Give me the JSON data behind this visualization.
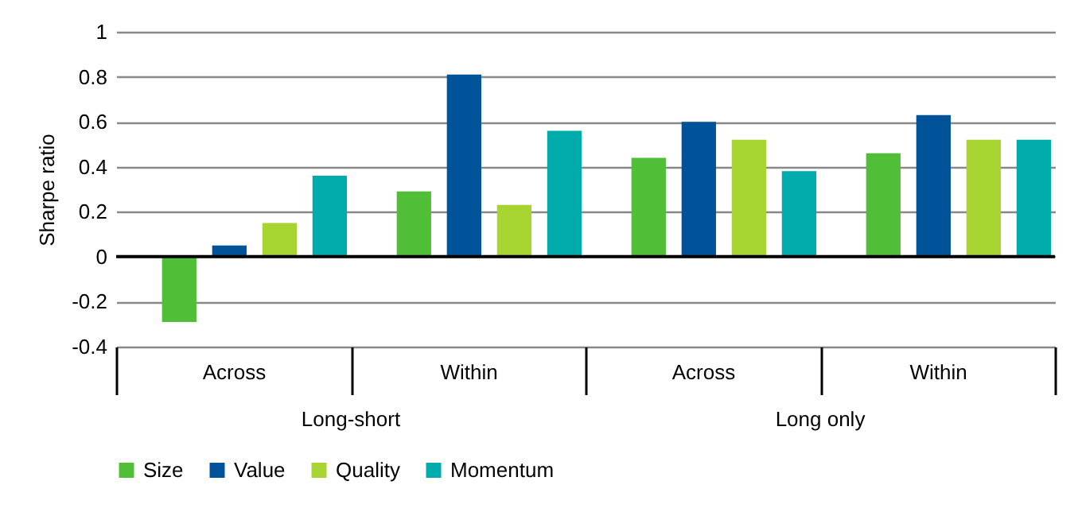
{
  "chart_data": {
    "type": "bar",
    "ylabel": "Sharpe ratio",
    "categories": [
      "Across",
      "Within",
      "Across",
      "Within"
    ],
    "annotations": [
      "Long-short",
      "Long only"
    ],
    "series": [
      {
        "name": "Size",
        "color": "#50be37",
        "values": [
          -0.29,
          0.29,
          0.44,
          0.46
        ]
      },
      {
        "name": "Value",
        "color": "#005398",
        "values": [
          0.05,
          0.81,
          0.6,
          0.63
        ]
      },
      {
        "name": "Quality",
        "color": "#a8d431",
        "values": [
          0.15,
          0.23,
          0.52,
          0.52
        ]
      },
      {
        "name": "Momentum",
        "color": "#00abab",
        "values": [
          0.36,
          0.56,
          0.38,
          0.52
        ]
      }
    ],
    "ylim": [
      -0.4,
      1
    ],
    "yticks": [
      -0.4,
      -0.2,
      0,
      0.2,
      0.4,
      0.6,
      0.8,
      1
    ],
    "grid": "y",
    "legend": "bottom",
    "ref_lines": [
      {
        "axis": "y",
        "value": 0,
        "color": "#000000"
      }
    ]
  }
}
